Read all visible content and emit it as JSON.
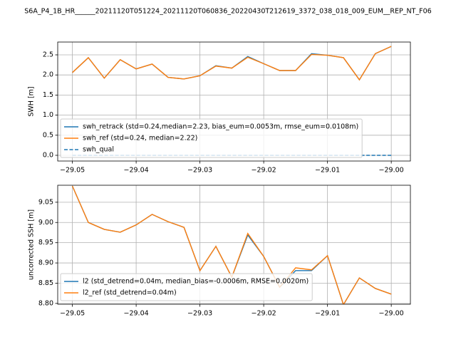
{
  "title": "S6A_P4_1B_HR______20211120T051224_20211120T060836_20220430T212619_3372_038_018_009_EUM__REP_NT_F06",
  "chart_data": [
    {
      "type": "line",
      "ylabel": "SWH [m]",
      "grid": true,
      "legend": "lower left",
      "x": [
        -29.05,
        -29.0475,
        -29.045,
        -29.0425,
        -29.04,
        -29.0375,
        -29.035,
        -29.0325,
        -29.03,
        -29.0275,
        -29.025,
        -29.0225,
        -29.02,
        -29.0175,
        -29.015,
        -29.0125,
        -29.01,
        -29.0075,
        -29.005,
        -29.0025,
        -29.0
      ],
      "series": [
        {
          "name": "swh_retrack (std=0.24,median=2.23, bias_eum=0.0053m, rmse_eum=0.0108m)",
          "color": "#1f77b4",
          "linestyle": "solid",
          "values": [
            2.06,
            2.43,
            1.92,
            2.38,
            2.15,
            2.27,
            1.94,
            1.9,
            1.98,
            2.23,
            2.17,
            2.46,
            2.28,
            2.11,
            2.11,
            2.53,
            2.49,
            2.43,
            1.88,
            2.53,
            2.71
          ]
        },
        {
          "name": "swh_ref (std=0.24, median=2.22)",
          "color": "#ff7f0e",
          "linestyle": "solid",
          "values": [
            2.06,
            2.43,
            1.92,
            2.38,
            2.15,
            2.27,
            1.94,
            1.9,
            1.98,
            2.22,
            2.17,
            2.44,
            2.28,
            2.11,
            2.11,
            2.51,
            2.49,
            2.43,
            1.88,
            2.53,
            2.71
          ]
        },
        {
          "name": "swh_qual",
          "color": "#1f77b4",
          "linestyle": "dashed",
          "values": [
            0,
            0,
            0,
            0,
            0,
            0,
            0,
            0,
            0,
            0,
            0,
            0,
            0,
            0,
            0,
            0,
            0,
            0,
            0,
            0,
            0
          ]
        }
      ],
      "xlim": [
        -29.0523,
        -28.997
      ],
      "xticks": [
        {
          "value": -29.05,
          "label": "−29.05"
        },
        {
          "value": -29.04,
          "label": "−29.04"
        },
        {
          "value": -29.03,
          "label": "−29.03"
        },
        {
          "value": -29.02,
          "label": "−29.02"
        },
        {
          "value": -29.01,
          "label": "−29.01"
        },
        {
          "value": -29.0,
          "label": "−29.00"
        }
      ],
      "ylim": [
        -0.142,
        2.819
      ],
      "yticks": [
        {
          "value": 0,
          "label": "0.0"
        },
        {
          "value": 0.5,
          "label": "0.5"
        },
        {
          "value": 1,
          "label": "1.0"
        },
        {
          "value": 1.5,
          "label": "1.5"
        },
        {
          "value": 2,
          "label": "2.0"
        },
        {
          "value": 2.5,
          "label": "2.5"
        }
      ]
    },
    {
      "type": "line",
      "ylabel": "uncorrected SSH [m]",
      "grid": true,
      "legend": "lower left",
      "x": [
        -29.05,
        -29.0475,
        -29.045,
        -29.0425,
        -29.04,
        -29.0375,
        -29.035,
        -29.0325,
        -29.03,
        -29.0275,
        -29.025,
        -29.0225,
        -29.02,
        -29.0175,
        -29.015,
        -29.0125,
        -29.01,
        -29.0075,
        -29.005,
        -29.0025,
        -29.0
      ],
      "series": [
        {
          "name": "l2 (std_detrend=0.04m, median_bias=-0.0006m, RMSE=0.0020m)",
          "color": "#1f77b4",
          "linestyle": "solid",
          "values": [
            9.09,
            9.0,
            8.983,
            8.976,
            8.994,
            9.02,
            9.002,
            8.988,
            8.881,
            8.941,
            8.865,
            8.969,
            8.916,
            8.84,
            8.881,
            8.881,
            8.918,
            8.797,
            8.863,
            8.837,
            8.823
          ]
        },
        {
          "name": "l2_ref (std_detrend=0.04m)",
          "color": "#ff7f0e",
          "linestyle": "solid",
          "values": [
            9.09,
            9.0,
            8.983,
            8.976,
            8.994,
            9.02,
            9.002,
            8.988,
            8.881,
            8.941,
            8.865,
            8.973,
            8.916,
            8.84,
            8.888,
            8.883,
            8.918,
            8.797,
            8.863,
            8.837,
            8.823
          ]
        }
      ],
      "xlim": [
        -29.0523,
        -28.997
      ],
      "xticks": [
        {
          "value": -29.05,
          "label": "−29.05"
        },
        {
          "value": -29.04,
          "label": "−29.04"
        },
        {
          "value": -29.03,
          "label": "−29.03"
        },
        {
          "value": -29.02,
          "label": "−29.02"
        },
        {
          "value": -29.01,
          "label": "−29.01"
        },
        {
          "value": -29.0,
          "label": "−29.00"
        }
      ],
      "ylim": [
        8.798,
        9.092
      ],
      "yticks": [
        {
          "value": 8.8,
          "label": "8.80"
        },
        {
          "value": 8.85,
          "label": "8.85"
        },
        {
          "value": 8.9,
          "label": "8.90"
        },
        {
          "value": 8.95,
          "label": "8.95"
        },
        {
          "value": 9.0,
          "label": "9.00"
        },
        {
          "value": 9.05,
          "label": "9.05"
        }
      ]
    }
  ]
}
